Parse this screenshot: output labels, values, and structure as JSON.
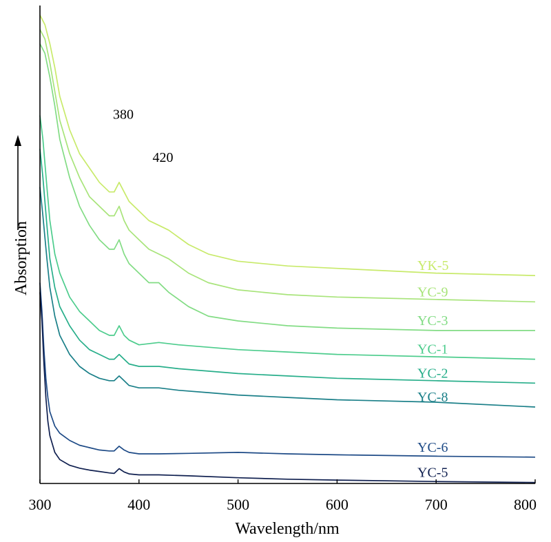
{
  "chart_data": {
    "type": "line",
    "xlabel": "Wavelength/nm",
    "ylabel": "Absorption",
    "xlim": [
      300,
      800
    ],
    "ylim": [
      0,
      100
    ],
    "xticks": [
      "300",
      "400",
      "500",
      "600",
      "700",
      "800"
    ],
    "yticks_shown": false,
    "grid": false,
    "legend": "inline-right",
    "annotations": [
      {
        "text": "380",
        "x": 380,
        "y": 76
      },
      {
        "text": "420",
        "x": 420,
        "y": 67
      }
    ],
    "series": [
      {
        "name": "YK-5",
        "color": "#c8ea6a",
        "x": [
          300,
          305,
          310,
          315,
          320,
          330,
          340,
          350,
          360,
          370,
          375,
          380,
          385,
          390,
          400,
          410,
          420,
          430,
          450,
          470,
          500,
          550,
          600,
          700,
          800
        ],
        "y": [
          98,
          96,
          92,
          87,
          81,
          74,
          69,
          66,
          63,
          61,
          61,
          63,
          61,
          59,
          57,
          55,
          54,
          53,
          50,
          48,
          46.5,
          45.5,
          45,
          44,
          43.5
        ]
      },
      {
        "name": "YC-9",
        "color": "#a8e47a",
        "x": [
          300,
          305,
          310,
          315,
          320,
          330,
          340,
          350,
          360,
          370,
          375,
          380,
          385,
          390,
          400,
          410,
          420,
          430,
          450,
          470,
          500,
          550,
          600,
          700,
          800
        ],
        "y": [
          95,
          93,
          88,
          82,
          76,
          69,
          64,
          60,
          58,
          56,
          56,
          58,
          55,
          53,
          51,
          49,
          48,
          47,
          44,
          42,
          40.5,
          39.5,
          39,
          38.5,
          38
        ]
      },
      {
        "name": "YC-3",
        "color": "#82dc84",
        "x": [
          300,
          305,
          310,
          315,
          320,
          330,
          340,
          350,
          360,
          370,
          375,
          380,
          385,
          390,
          400,
          410,
          420,
          430,
          450,
          470,
          500,
          550,
          600,
          700,
          800
        ],
        "y": [
          92,
          90,
          85,
          79,
          72,
          64,
          58,
          54,
          51,
          49,
          49,
          51,
          48,
          46,
          44,
          42,
          42,
          40,
          37,
          35,
          34,
          33,
          32.5,
          32,
          32
        ]
      },
      {
        "name": "YC-1",
        "color": "#4ccc8c",
        "x": [
          300,
          303,
          307,
          310,
          315,
          320,
          330,
          340,
          350,
          360,
          370,
          375,
          380,
          385,
          390,
          400,
          420,
          440,
          470,
          500,
          550,
          600,
          700,
          800
        ],
        "y": [
          77,
          72,
          62,
          55,
          48,
          44,
          39,
          36,
          34,
          32,
          31,
          31,
          33,
          31,
          30,
          29,
          29.5,
          29,
          28.5,
          28,
          27.5,
          27,
          26.5,
          26
        ]
      },
      {
        "name": "YC-2",
        "color": "#27ae8a",
        "x": [
          300,
          303,
          307,
          310,
          315,
          320,
          330,
          340,
          350,
          360,
          370,
          375,
          380,
          385,
          390,
          400,
          420,
          440,
          470,
          500,
          550,
          600,
          700,
          800
        ],
        "y": [
          70,
          64,
          54,
          47,
          41,
          37,
          33,
          30,
          28,
          27,
          26,
          26,
          27,
          26,
          25,
          24.5,
          24.5,
          24,
          23.5,
          23,
          22.5,
          22,
          21.5,
          21
        ]
      },
      {
        "name": "YC-8",
        "color": "#1a7f88",
        "x": [
          300,
          303,
          307,
          310,
          315,
          320,
          330,
          340,
          350,
          360,
          370,
          375,
          380,
          385,
          390,
          400,
          420,
          440,
          470,
          500,
          550,
          600,
          700,
          800
        ],
        "y": [
          62,
          56,
          47,
          41,
          35,
          31,
          27,
          24.5,
          23,
          22,
          21.5,
          21.5,
          22.5,
          21.5,
          20.5,
          20,
          20,
          19.5,
          19,
          18.5,
          18,
          17.5,
          17,
          16
        ]
      },
      {
        "name": "YC-6",
        "color": "#1d4a86",
        "x": [
          300,
          302,
          304,
          306,
          308,
          310,
          315,
          320,
          330,
          340,
          350,
          360,
          370,
          375,
          380,
          385,
          390,
          400,
          420,
          450,
          500,
          550,
          600,
          700,
          800
        ],
        "y": [
          42,
          36,
          28,
          22,
          18,
          15,
          12,
          10.5,
          9,
          8,
          7.5,
          7,
          6.8,
          6.8,
          7.8,
          7,
          6.5,
          6.2,
          6.2,
          6.3,
          6.5,
          6.2,
          6,
          5.7,
          5.5
        ]
      },
      {
        "name": "YC-5",
        "color": "#0f1f4f",
        "x": [
          300,
          302,
          304,
          306,
          308,
          310,
          315,
          320,
          330,
          340,
          350,
          360,
          370,
          375,
          380,
          385,
          390,
          400,
          420,
          450,
          500,
          550,
          600,
          700,
          800
        ],
        "y": [
          40,
          34,
          25,
          18,
          13,
          10,
          6.5,
          5,
          3.8,
          3.2,
          2.8,
          2.5,
          2.2,
          2.1,
          3.1,
          2.4,
          2,
          1.8,
          1.8,
          1.6,
          1.2,
          0.9,
          0.7,
          0.4,
          0.2
        ]
      }
    ]
  }
}
